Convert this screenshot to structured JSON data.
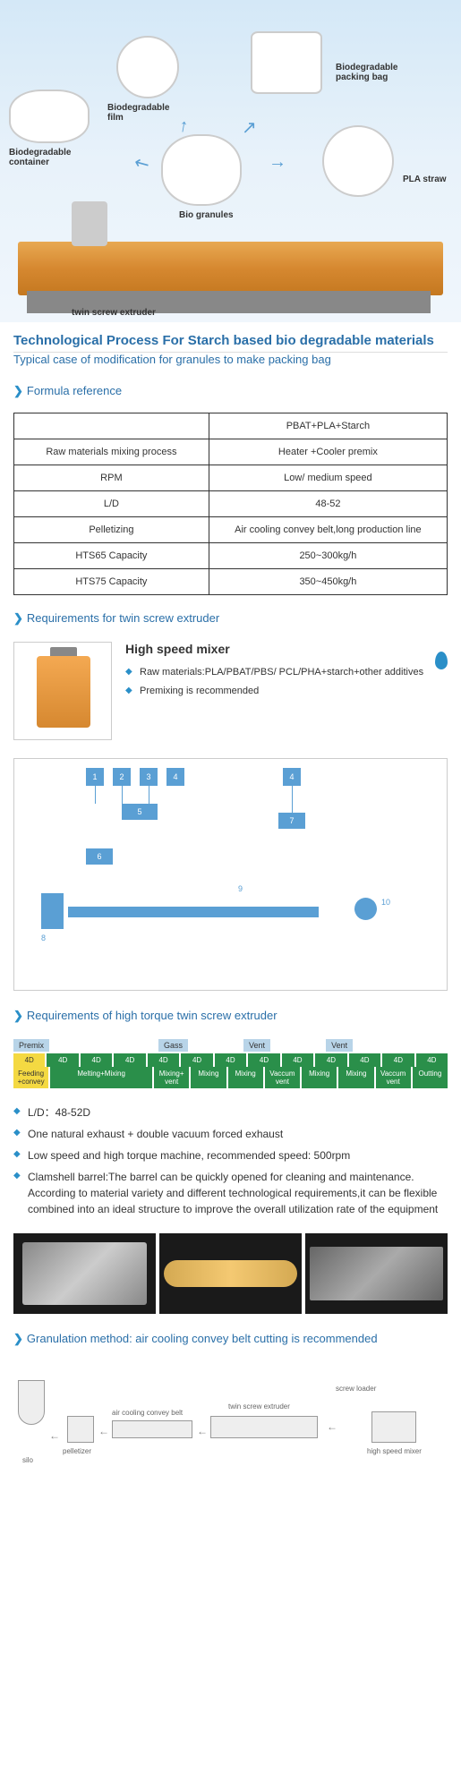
{
  "hero": {
    "items": [
      {
        "label": "Biodegradable\ncontainer"
      },
      {
        "label": "Biodegradable\nfilm"
      },
      {
        "label": "Bio granules"
      },
      {
        "label": "Biodegradable\npacking bag"
      },
      {
        "label": "PLA straw"
      }
    ],
    "machine_label": "twin screw extruder"
  },
  "section1": {
    "title": "Technological Process For Starch based bio degradable materials",
    "subtitle": "Typical case of modification for granules to make packing bag"
  },
  "formula": {
    "header": "Formula reference",
    "rows": [
      [
        "",
        "PBAT+PLA+Starch"
      ],
      [
        "Raw materials mixing process",
        "Heater +Cooler premix"
      ],
      [
        "RPM",
        "Low/ medium speed"
      ],
      [
        "L/D",
        "48-52"
      ],
      [
        "Pelletizing",
        "Air cooling convey belt,long production line"
      ],
      [
        "HTS65 Capacity",
        "250~300kg/h"
      ],
      [
        "HTS75 Capacity",
        "350~450kg/h"
      ]
    ]
  },
  "req1": {
    "header": "Requirements for twin screw extruder",
    "mixer_title": "High speed mixer",
    "bullets": [
      "Raw materials:PLA/PBAT/PBS/ PCL/PHA+starch+other additives",
      "Premixing is recommended"
    ]
  },
  "diagram": {
    "labels": [
      "1",
      "2",
      "3",
      "4",
      "4",
      "5",
      "6",
      "7",
      "8",
      "9",
      "10"
    ]
  },
  "req2": {
    "header": "Requirements of high torque twin screw extruder",
    "barrel_top": [
      "Premix",
      "Gass",
      "Vent",
      "Vent"
    ],
    "barrel_top_row": [
      "4D",
      "4D",
      "4D",
      "4D",
      "4D",
      "4D",
      "4D",
      "4D",
      "4D",
      "4D",
      "4D",
      "4D",
      "4D"
    ],
    "barrel_bot_row": [
      "Feeding +convey",
      "Melting+Mixing",
      "",
      "",
      "Mixing+ vent",
      "Mixing",
      "Mixing",
      "Vaccum vent",
      "Mixing",
      "Mixing",
      "Vaccum vent",
      "Outting"
    ],
    "bullets": [
      "L/D：48-52D",
      "One natural exhaust + double vacuum forced exhaust",
      "Low speed and high torque machine, recommended speed: 500rpm",
      "Clamshell barrel:The barrel can be quickly opened for cleaning and maintenance. According to material variety and different technological requirements,it can be flexible combined into an ideal structure to improve the overall utilization rate of the equipment"
    ]
  },
  "gran": {
    "header": "Granulation method: air cooling convey belt cutting is recommended",
    "labels": [
      "silo",
      "pelletizer",
      "air cooling convey belt",
      "twin screw extruder",
      "screw loader",
      "high speed mixer"
    ]
  },
  "colors": {
    "primary": "#2a6fa8",
    "accent": "#2a8fc8",
    "green": "#2a8f4a",
    "yellow": "#f4d942"
  }
}
